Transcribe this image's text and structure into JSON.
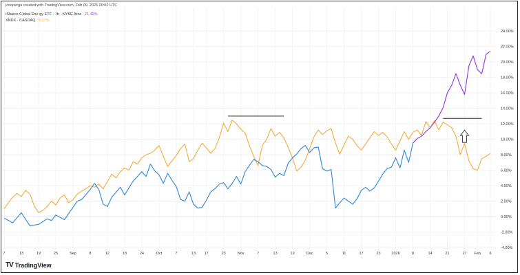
{
  "header": {
    "credit": "jcooperga created with TradingView.com, Feb 09, 2026 00:02 UTC"
  },
  "brand": {
    "name": "TradingView",
    "logo_text": "TV"
  },
  "chart_data": {
    "type": "line",
    "series": [
      {
        "name": "iShares Global Energy ETF · 2h · NYSE Arca",
        "last_label": "21.42%",
        "color": "#3d8fd6",
        "highlight_color": "#9b3fe0"
      },
      {
        "name": "XNDX · NASDAQ",
        "last_label": "8.17%",
        "color": "#f7a93b"
      }
    ],
    "x_ticks": [
      "7",
      "13",
      "19",
      "25",
      "Sep",
      "8",
      "12",
      "18",
      "24",
      "Oct",
      "7",
      "13",
      "17",
      "23",
      "Nov",
      "7",
      "13",
      "19",
      "Dec",
      "5",
      "11",
      "17",
      "23",
      "2026",
      "8",
      "14",
      "21",
      "27",
      "Feb",
      "6"
    ],
    "y_ticks": [
      "24.00%",
      "22.00%",
      "20.00%",
      "18.00%",
      "16.00%",
      "14.00%",
      "12.00%",
      "10.00%",
      "8.00%",
      "6.00%",
      "4.00%",
      "2.00%",
      "0.00%",
      "-2.00%",
      "-4.00%"
    ],
    "ylim": [
      -4,
      25
    ],
    "grid": true,
    "legend_placement": "top-left",
    "xlabel": "",
    "ylabel": "",
    "energy_points": [
      [
        0,
        -0.2
      ],
      [
        2,
        -0.8
      ],
      [
        4,
        0.5
      ],
      [
        6,
        -1.2
      ],
      [
        8,
        -1.0
      ],
      [
        10,
        -0.3
      ],
      [
        11,
        -0.5
      ],
      [
        12,
        0.2
      ],
      [
        14,
        -0.4
      ],
      [
        16,
        1.2
      ],
      [
        17,
        2.0
      ],
      [
        18,
        2.2
      ],
      [
        20,
        3.5
      ],
      [
        21,
        4.3
      ],
      [
        22,
        3.5
      ],
      [
        23,
        1.6
      ],
      [
        24,
        1.3
      ],
      [
        25,
        2.5
      ],
      [
        27,
        3.8
      ],
      [
        28,
        2.8
      ],
      [
        30,
        4.6
      ],
      [
        32,
        5.8
      ],
      [
        33,
        5.2
      ],
      [
        34,
        6.8
      ],
      [
        35,
        5.9
      ],
      [
        36,
        5.4
      ],
      [
        37,
        4.3
      ],
      [
        38,
        5.6
      ],
      [
        39,
        4.7
      ],
      [
        40,
        3.9
      ],
      [
        41,
        2.2
      ],
      [
        42,
        2.0
      ],
      [
        43,
        3.2
      ],
      [
        44,
        1.6
      ],
      [
        45,
        1.1
      ],
      [
        46,
        1.2
      ],
      [
        47,
        2.1
      ],
      [
        48,
        3.2
      ],
      [
        49,
        3.6
      ],
      [
        50,
        4.2
      ],
      [
        51,
        4.4
      ],
      [
        52,
        3.6
      ],
      [
        53,
        4.3
      ],
      [
        54,
        5.2
      ],
      [
        55,
        4.2
      ],
      [
        56,
        5.8
      ],
      [
        57,
        6.6
      ],
      [
        58,
        7.4
      ],
      [
        59,
        7.1
      ],
      [
        60,
        6.6
      ],
      [
        61,
        6.5
      ],
      [
        62,
        6.1
      ],
      [
        63,
        5.1
      ],
      [
        64,
        5.6
      ],
      [
        65,
        5.3
      ],
      [
        66,
        6.9
      ],
      [
        67,
        7.6
      ],
      [
        68,
        8.1
      ],
      [
        69,
        8.8
      ],
      [
        70,
        9.2
      ],
      [
        71,
        8.3
      ],
      [
        72,
        8.9
      ],
      [
        73,
        9.0
      ],
      [
        74,
        6.2
      ],
      [
        75,
        5.9
      ],
      [
        76,
        6.1
      ],
      [
        77,
        1.1
      ],
      [
        78,
        1.8
      ],
      [
        79,
        2.4
      ],
      [
        80,
        2.0
      ],
      [
        81,
        1.6
      ],
      [
        82,
        2.3
      ],
      [
        83,
        3.4
      ],
      [
        84,
        3.8
      ],
      [
        85,
        3.3
      ],
      [
        86,
        3.7
      ],
      [
        87,
        4.6
      ],
      [
        88,
        5.5
      ],
      [
        89,
        6.2
      ],
      [
        90,
        6.4
      ],
      [
        91,
        7.6
      ],
      [
        92,
        6.3
      ],
      [
        93,
        8.6
      ],
      [
        94,
        7.0
      ],
      [
        95,
        9.5
      ],
      [
        96,
        10.1
      ],
      [
        97,
        10.4
      ],
      [
        98,
        11.0
      ],
      [
        99,
        11.5
      ],
      [
        100,
        12.2
      ],
      [
        101,
        13.0
      ],
      [
        102,
        14.1
      ],
      [
        103,
        16.0
      ],
      [
        104,
        17.0
      ],
      [
        105,
        18.5
      ],
      [
        106,
        17.0
      ],
      [
        107,
        15.8
      ],
      [
        108,
        19.5
      ],
      [
        109,
        20.8
      ],
      [
        110,
        19.0
      ],
      [
        111,
        18.5
      ],
      [
        112,
        21.0
      ],
      [
        113,
        21.4
      ]
    ],
    "energy_highlight_from": 95,
    "xndx_points": [
      [
        0,
        1.0
      ],
      [
        1,
        1.8
      ],
      [
        2,
        2.5
      ],
      [
        3,
        3.0
      ],
      [
        4,
        2.6
      ],
      [
        5,
        3.4
      ],
      [
        6,
        2.9
      ],
      [
        7,
        1.4
      ],
      [
        8,
        0.5
      ],
      [
        9,
        0.8
      ],
      [
        10,
        1.3
      ],
      [
        11,
        2.0
      ],
      [
        12,
        1.5
      ],
      [
        13,
        2.4
      ],
      [
        14,
        2.8
      ],
      [
        15,
        1.8
      ],
      [
        16,
        2.2
      ],
      [
        17,
        2.9
      ],
      [
        18,
        3.3
      ],
      [
        19,
        3.6
      ],
      [
        20,
        4.0
      ],
      [
        21,
        3.8
      ],
      [
        22,
        4.2
      ],
      [
        23,
        3.6
      ],
      [
        24,
        4.5
      ],
      [
        25,
        5.5
      ],
      [
        26,
        5.0
      ],
      [
        27,
        5.8
      ],
      [
        28,
        6.3
      ],
      [
        29,
        6.0
      ],
      [
        30,
        7.1
      ],
      [
        31,
        6.8
      ],
      [
        32,
        7.6
      ],
      [
        33,
        8.0
      ],
      [
        34,
        8.2
      ],
      [
        35,
        8.6
      ],
      [
        36,
        9.2
      ],
      [
        37,
        7.8
      ],
      [
        38,
        6.5
      ],
      [
        39,
        7.2
      ],
      [
        40,
        7.9
      ],
      [
        41,
        8.8
      ],
      [
        42,
        9.4
      ],
      [
        43,
        7.1
      ],
      [
        44,
        7.5
      ],
      [
        45,
        8.6
      ],
      [
        46,
        9.5
      ],
      [
        47,
        8.9
      ],
      [
        48,
        8.2
      ],
      [
        49,
        8.8
      ],
      [
        50,
        10.2
      ],
      [
        51,
        12.1
      ],
      [
        52,
        11.0
      ],
      [
        53,
        12.5
      ],
      [
        54,
        12.0
      ],
      [
        55,
        11.3
      ],
      [
        56,
        10.8
      ],
      [
        57,
        9.2
      ],
      [
        58,
        7.8
      ],
      [
        59,
        6.6
      ],
      [
        60,
        9.2
      ],
      [
        61,
        10.0
      ],
      [
        62,
        11.4
      ],
      [
        63,
        10.4
      ],
      [
        64,
        10.9
      ],
      [
        65,
        10.2
      ],
      [
        66,
        9.0
      ],
      [
        67,
        7.6
      ],
      [
        68,
        5.9
      ],
      [
        69,
        6.4
      ],
      [
        70,
        7.3
      ],
      [
        71,
        8.8
      ],
      [
        72,
        10.3
      ],
      [
        73,
        11.2
      ],
      [
        74,
        10.6
      ],
      [
        75,
        11.1
      ],
      [
        76,
        11.4
      ],
      [
        77,
        9.5
      ],
      [
        78,
        8.1
      ],
      [
        79,
        9.3
      ],
      [
        80,
        10.4
      ],
      [
        81,
        10.0
      ],
      [
        82,
        9.2
      ],
      [
        83,
        8.6
      ],
      [
        84,
        9.4
      ],
      [
        85,
        10.2
      ],
      [
        86,
        11.0
      ],
      [
        87,
        10.5
      ],
      [
        88,
        10.9
      ],
      [
        89,
        10.3
      ],
      [
        90,
        9.4
      ],
      [
        91,
        8.6
      ],
      [
        92,
        9.8
      ],
      [
        93,
        11.0
      ],
      [
        94,
        10.0
      ],
      [
        95,
        10.9
      ],
      [
        96,
        11.2
      ],
      [
        97,
        10.5
      ],
      [
        98,
        12.3
      ],
      [
        99,
        11.5
      ],
      [
        100,
        12.4
      ],
      [
        101,
        11.2
      ],
      [
        102,
        12.2
      ],
      [
        103,
        11.9
      ],
      [
        104,
        11.5
      ],
      [
        105,
        10.4
      ],
      [
        106,
        8.0
      ],
      [
        107,
        9.5
      ],
      [
        108,
        7.2
      ],
      [
        109,
        6.2
      ],
      [
        110,
        6.0
      ],
      [
        111,
        7.5
      ],
      [
        112,
        7.8
      ],
      [
        113,
        8.2
      ]
    ],
    "x_index_max": 113,
    "tick_positions": [
      0,
      4,
      8,
      12,
      16,
      20,
      24,
      28,
      32,
      36,
      40,
      44,
      47,
      51,
      55,
      59,
      63,
      67,
      71,
      75,
      79,
      83,
      87,
      91,
      95,
      99,
      103,
      107,
      110,
      113
    ],
    "annotations": [
      {
        "type": "horizontal_line",
        "from_index": 52,
        "to_index": 65,
        "value": 13.0
      },
      {
        "type": "horizontal_line",
        "from_index": 102,
        "to_index": 111,
        "value": 12.7
      },
      {
        "type": "arrow",
        "direction": "up",
        "index": 107,
        "top_value": 11.2,
        "bottom_value": 9.6
      }
    ]
  }
}
